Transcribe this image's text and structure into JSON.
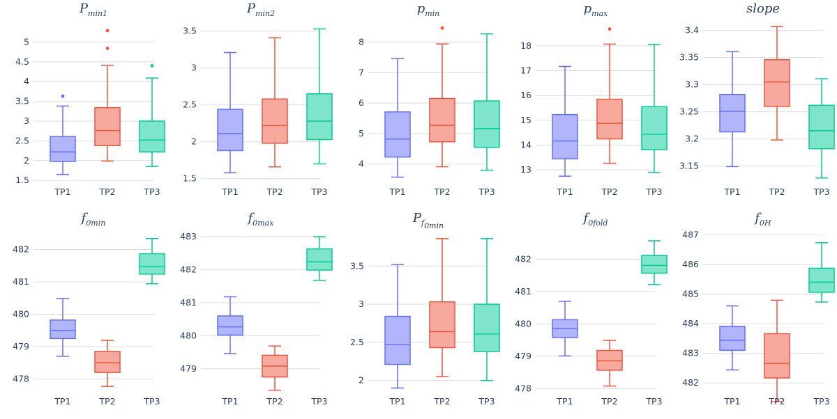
{
  "colors": {
    "TP1": {
      "line": "#636efa",
      "fill": "#b1b6fc"
    },
    "TP2": {
      "line": "#ef553b",
      "fill": "#f6a99c"
    },
    "TP3": {
      "line": "#00cc96",
      "fill": "#7fe5ca"
    },
    "grid": "#dcdcdc",
    "text": "#2a3f5f"
  },
  "chart_data": [
    {
      "type": "box",
      "title": "P",
      "subscript": "min1",
      "categories": [
        "TP1",
        "TP2",
        "TP3"
      ],
      "ylim": [
        1.45,
        5.5
      ],
      "yticks": [
        1.5,
        2,
        2.5,
        3,
        3.5,
        4,
        4.5,
        5
      ],
      "ytick_labels": [
        "1.5",
        "2",
        "2.5",
        "3",
        "3.5",
        "4",
        "4.5",
        "5"
      ],
      "boxes": [
        {
          "name": "TP1",
          "min": 1.65,
          "q1": 1.98,
          "median": 2.22,
          "q3": 2.61,
          "max": 3.38,
          "outliers": [
            3.63
          ]
        },
        {
          "name": "TP2",
          "min": 1.99,
          "q1": 2.38,
          "median": 2.76,
          "q3": 3.34,
          "max": 4.41,
          "outliers": [
            4.84,
            5.29
          ]
        },
        {
          "name": "TP3",
          "min": 1.85,
          "q1": 2.22,
          "median": 2.52,
          "q3": 3.0,
          "max": 4.09,
          "outliers": [
            4.4
          ]
        }
      ]
    },
    {
      "type": "box",
      "title": "P",
      "subscript": "min2",
      "categories": [
        "TP1",
        "TP2",
        "TP3"
      ],
      "ylim": [
        1.45,
        3.62
      ],
      "yticks": [
        1.5,
        2,
        2.5,
        3,
        3.5
      ],
      "ytick_labels": [
        "1.5",
        "2",
        "2.5",
        "3",
        "3.5"
      ],
      "boxes": [
        {
          "name": "TP1",
          "min": 1.58,
          "q1": 1.88,
          "median": 2.11,
          "q3": 2.44,
          "max": 3.21,
          "outliers": []
        },
        {
          "name": "TP2",
          "min": 1.66,
          "q1": 1.98,
          "median": 2.22,
          "q3": 2.58,
          "max": 3.41,
          "outliers": []
        },
        {
          "name": "TP3",
          "min": 1.7,
          "q1": 2.03,
          "median": 2.28,
          "q3": 2.65,
          "max": 3.53,
          "outliers": []
        }
      ]
    },
    {
      "type": "box",
      "title": "p",
      "subscript": "min",
      "categories": [
        "TP1",
        "TP2",
        "TP3"
      ],
      "ylim": [
        3.4,
        8.65
      ],
      "yticks": [
        4,
        5,
        6,
        7,
        8
      ],
      "ytick_labels": [
        "4",
        "5",
        "6",
        "7",
        "8"
      ],
      "boxes": [
        {
          "name": "TP1",
          "min": 3.57,
          "q1": 4.23,
          "median": 4.82,
          "q3": 5.71,
          "max": 7.46,
          "outliers": []
        },
        {
          "name": "TP2",
          "min": 3.91,
          "q1": 4.73,
          "median": 5.27,
          "q3": 6.15,
          "max": 7.94,
          "outliers": [
            8.46
          ]
        },
        {
          "name": "TP3",
          "min": 3.8,
          "q1": 4.55,
          "median": 5.16,
          "q3": 6.07,
          "max": 8.27,
          "outliers": []
        }
      ]
    },
    {
      "type": "box",
      "title": "p",
      "subscript": "max",
      "categories": [
        "TP1",
        "TP2",
        "TP3"
      ],
      "ylim": [
        12.5,
        18.95
      ],
      "yticks": [
        13,
        14,
        15,
        16,
        17,
        18
      ],
      "ytick_labels": [
        "13",
        "14",
        "15",
        "16",
        "17",
        "18"
      ],
      "boxes": [
        {
          "name": "TP1",
          "min": 12.75,
          "q1": 13.45,
          "median": 14.17,
          "q3": 15.23,
          "max": 17.17,
          "outliers": []
        },
        {
          "name": "TP2",
          "min": 13.27,
          "q1": 14.25,
          "median": 14.88,
          "q3": 15.85,
          "max": 18.07,
          "outliers": [
            18.68
          ]
        },
        {
          "name": "TP3",
          "min": 12.9,
          "q1": 13.82,
          "median": 14.44,
          "q3": 15.55,
          "max": 18.06,
          "outliers": []
        }
      ]
    },
    {
      "type": "box",
      "title": "slope",
      "subscript": "",
      "categories": [
        "TP1",
        "TP2",
        "TP3"
      ],
      "ylim": [
        3.12,
        3.415
      ],
      "yticks": [
        3.15,
        3.2,
        3.25,
        3.3,
        3.35,
        3.4
      ],
      "ytick_labels": [
        "3.15",
        "3.2",
        "3.25",
        "3.3",
        "3.35",
        "3.4"
      ],
      "boxes": [
        {
          "name": "TP1",
          "min": 3.149,
          "q1": 3.213,
          "median": 3.251,
          "q3": 3.282,
          "max": 3.361,
          "outliers": []
        },
        {
          "name": "TP2",
          "min": 3.198,
          "q1": 3.26,
          "median": 3.305,
          "q3": 3.346,
          "max": 3.407,
          "outliers": []
        },
        {
          "name": "TP3",
          "min": 3.128,
          "q1": 3.182,
          "median": 3.215,
          "q3": 3.262,
          "max": 3.311,
          "outliers": []
        }
      ]
    },
    {
      "type": "box",
      "title": "f",
      "subscript": "0min",
      "categories": [
        "TP1",
        "TP2",
        "TP3"
      ],
      "ylim": [
        477.6,
        482.55
      ],
      "yticks": [
        478,
        479,
        480,
        481,
        482
      ],
      "ytick_labels": [
        "478",
        "479",
        "480",
        "481",
        "482"
      ],
      "boxes": [
        {
          "name": "TP1",
          "min": 478.7,
          "q1": 479.25,
          "median": 479.5,
          "q3": 479.82,
          "max": 480.49,
          "outliers": []
        },
        {
          "name": "TP2",
          "min": 477.77,
          "q1": 478.2,
          "median": 478.5,
          "q3": 478.85,
          "max": 479.19,
          "outliers": []
        },
        {
          "name": "TP3",
          "min": 480.94,
          "q1": 481.24,
          "median": 481.47,
          "q3": 481.87,
          "max": 482.34,
          "outliers": []
        }
      ]
    },
    {
      "type": "box",
      "title": "f",
      "subscript": "0max",
      "categories": [
        "TP1",
        "TP2",
        "TP3"
      ],
      "ylim": [
        478.3,
        483.15
      ],
      "yticks": [
        479,
        480,
        481,
        482,
        483
      ],
      "ytick_labels": [
        "479",
        "480",
        "481",
        "482",
        "483"
      ],
      "boxes": [
        {
          "name": "TP1",
          "min": 479.46,
          "q1": 480.02,
          "median": 480.27,
          "q3": 480.6,
          "max": 481.18,
          "outliers": []
        },
        {
          "name": "TP2",
          "min": 478.35,
          "q1": 478.75,
          "median": 479.08,
          "q3": 479.41,
          "max": 479.69,
          "outliers": []
        },
        {
          "name": "TP3",
          "min": 481.68,
          "q1": 481.99,
          "median": 482.24,
          "q3": 482.63,
          "max": 483.0,
          "outliers": []
        }
      ]
    },
    {
      "type": "box",
      "title": "P",
      "subscript": "f",
      "subsubscript": "0min",
      "categories": [
        "TP1",
        "TP2",
        "TP3"
      ],
      "ylim": [
        1.85,
        3.95
      ],
      "yticks": [
        2,
        2.5,
        3,
        3.5
      ],
      "ytick_labels": [
        "2",
        "2.5",
        "3",
        "3.5"
      ],
      "boxes": [
        {
          "name": "TP1",
          "min": 1.9,
          "q1": 2.21,
          "median": 2.47,
          "q3": 2.84,
          "max": 3.52,
          "outliers": []
        },
        {
          "name": "TP2",
          "min": 2.05,
          "q1": 2.43,
          "median": 2.64,
          "q3": 3.03,
          "max": 3.86,
          "outliers": []
        },
        {
          "name": "TP3",
          "min": 2.0,
          "q1": 2.38,
          "median": 2.61,
          "q3": 3.0,
          "max": 3.86,
          "outliers": []
        }
      ]
    },
    {
      "type": "box",
      "title": "f",
      "subscript": "0fold",
      "categories": [
        "TP1",
        "TP2",
        "TP3"
      ],
      "ylim": [
        477.9,
        482.85
      ],
      "yticks": [
        478,
        479,
        480,
        481,
        482
      ],
      "ytick_labels": [
        "478",
        "479",
        "480",
        "481",
        "482"
      ],
      "boxes": [
        {
          "name": "TP1",
          "min": 479.01,
          "q1": 479.58,
          "median": 479.86,
          "q3": 480.13,
          "max": 480.7,
          "outliers": []
        },
        {
          "name": "TP2",
          "min": 478.08,
          "q1": 478.57,
          "median": 478.86,
          "q3": 479.18,
          "max": 479.49,
          "outliers": []
        },
        {
          "name": "TP3",
          "min": 481.22,
          "q1": 481.57,
          "median": 481.81,
          "q3": 482.12,
          "max": 482.57,
          "outliers": []
        }
      ]
    },
    {
      "type": "box",
      "title": "f",
      "subscript": "0H",
      "categories": [
        "TP1",
        "TP2",
        "TP3"
      ],
      "ylim": [
        481.7,
        487.1
      ],
      "yticks": [
        482,
        483,
        484,
        485,
        486,
        487
      ],
      "ytick_labels": [
        "482",
        "483",
        "484",
        "485",
        "486",
        "487"
      ],
      "boxes": [
        {
          "name": "TP1",
          "min": 482.44,
          "q1": 483.1,
          "median": 483.44,
          "q3": 483.91,
          "max": 484.6,
          "outliers": []
        },
        {
          "name": "TP2",
          "min": 481.37,
          "q1": 482.17,
          "median": 482.66,
          "q3": 483.66,
          "max": 484.79,
          "outliers": []
        },
        {
          "name": "TP3",
          "min": 484.73,
          "q1": 485.06,
          "median": 485.4,
          "q3": 485.87,
          "max": 486.73,
          "outliers": []
        }
      ]
    }
  ]
}
